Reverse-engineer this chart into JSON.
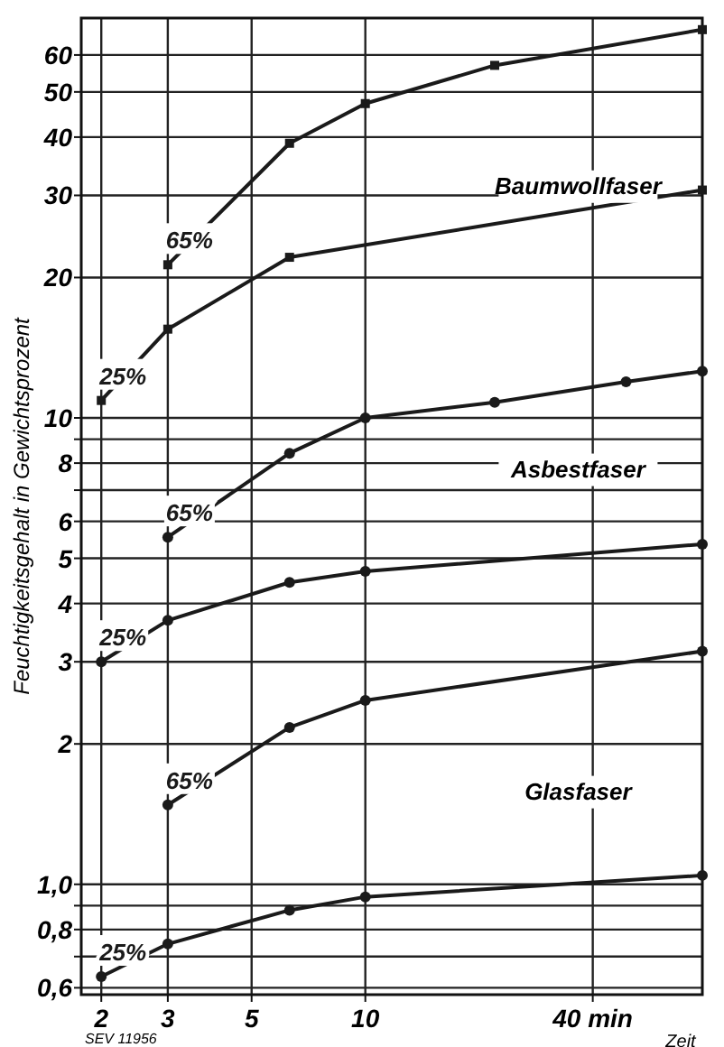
{
  "chart_data": {
    "type": "line",
    "xlabel": "Zeit",
    "ylabel": "Feuchtigkeitsgehalt in Gewichtsprozent",
    "log": "xy",
    "grid": true,
    "xlim": [
      1.77,
      78
    ],
    "ylim": [
      0.58,
      72
    ],
    "xticks": [
      2,
      3,
      5,
      10,
      {
        "value": 40,
        "label": "40 min"
      }
    ],
    "yticks": [
      {
        "value": 0.6,
        "label": "0,6"
      },
      {
        "value": 0.7,
        "label": null
      },
      {
        "value": 0.8,
        "label": "0,8"
      },
      {
        "value": 0.9,
        "label": null
      },
      {
        "value": 1,
        "label": "1,0"
      },
      2,
      3,
      4,
      5,
      6,
      {
        "value": 7,
        "label": null
      },
      8,
      {
        "value": 9,
        "label": null
      },
      10,
      20,
      30,
      40,
      50,
      60
    ],
    "series": [
      {
        "name": "65%",
        "color": "#1a1a1a",
        "marker": "square",
        "x": [
          3,
          6.3,
          10,
          22,
          78
        ],
        "values": [
          21.3,
          38.8,
          47.2,
          57,
          68
        ]
      },
      {
        "name": "25%",
        "color": "#1a1a1a",
        "marker": "square",
        "x": [
          2,
          3,
          6.3,
          78
        ],
        "values": [
          10.9,
          15.5,
          22.1,
          30.8
        ]
      },
      {
        "name": "65%",
        "color": "#1a1a1a",
        "marker": "circle",
        "x": [
          3,
          6.3,
          10,
          22,
          49,
          78
        ],
        "values": [
          5.55,
          8.4,
          10,
          10.8,
          11.95,
          12.6
        ]
      },
      {
        "name": "25%",
        "color": "#1a1a1a",
        "marker": "circle",
        "x": [
          2,
          3,
          6.3,
          10,
          78
        ],
        "values": [
          3,
          3.68,
          4.44,
          4.69,
          5.36
        ]
      },
      {
        "name": "65%",
        "color": "#1a1a1a",
        "marker": "circle",
        "x": [
          3,
          6.3,
          10,
          78
        ],
        "values": [
          1.48,
          2.17,
          2.48,
          3.16
        ]
      },
      {
        "name": "25%",
        "color": "#1a1a1a",
        "marker": "circle",
        "x": [
          2,
          3,
          6.3,
          10,
          78
        ],
        "values": [
          0.634,
          0.745,
          0.88,
          0.94,
          1.045
        ]
      }
    ],
    "annotations": [
      "Baumwollfaser",
      "Asbestfaser",
      "Glasfaser",
      "SEV 11956"
    ]
  }
}
